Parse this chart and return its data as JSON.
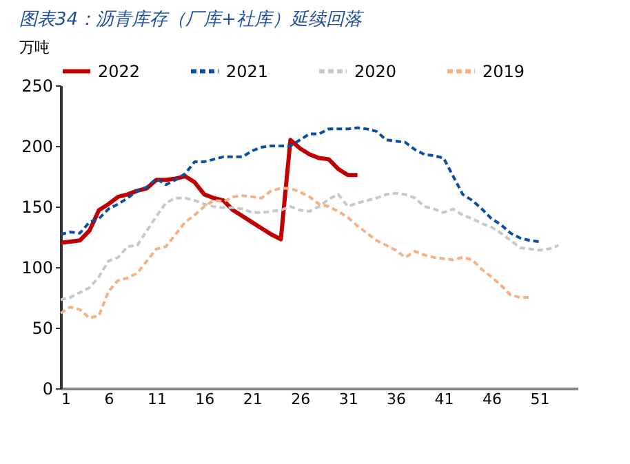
{
  "chart_data": {
    "type": "line",
    "title": "图表34：沥青库存（厂库+社库）延续回落",
    "ylabel": "万吨",
    "xlim": [
      1,
      55
    ],
    "xticks": [
      1,
      6,
      11,
      16,
      21,
      26,
      31,
      36,
      41,
      46,
      51
    ],
    "ylim": [
      0,
      250
    ],
    "yticks": [
      0,
      50,
      100,
      150,
      200,
      250
    ],
    "grid": false,
    "legend": "top",
    "series": [
      {
        "name": "2022",
        "color": "#c00000",
        "line_style": "solid",
        "x": [
          1,
          2,
          3,
          4,
          5,
          6,
          7,
          8,
          9,
          10,
          11,
          12,
          13,
          14,
          15,
          16,
          17,
          18,
          19,
          20,
          21,
          22,
          23,
          24,
          25,
          26,
          27,
          28,
          29,
          30,
          31,
          32
        ],
        "values": [
          120,
          121,
          122,
          130,
          147,
          152,
          158,
          160,
          163,
          165,
          172,
          172,
          173,
          175,
          170,
          160,
          157,
          155,
          147,
          142,
          137,
          132,
          127,
          123,
          205,
          198,
          193,
          190,
          189,
          181,
          176,
          176
        ]
      },
      {
        "name": "2021",
        "color": "#0b4ea2",
        "line_style": "dashed",
        "x": [
          1,
          2,
          3,
          4,
          5,
          6,
          7,
          8,
          9,
          10,
          11,
          12,
          13,
          14,
          15,
          16,
          17,
          18,
          19,
          20,
          21,
          22,
          23,
          24,
          25,
          26,
          27,
          28,
          29,
          30,
          31,
          32,
          33,
          34,
          35,
          36,
          37,
          38,
          39,
          40,
          41,
          42,
          43,
          44,
          45,
          46,
          47,
          48,
          49,
          50,
          51
        ],
        "values": [
          127,
          129,
          128,
          137,
          140,
          148,
          152,
          157,
          163,
          166,
          173,
          168,
          172,
          177,
          187,
          187,
          189,
          191,
          191,
          191,
          196,
          199,
          200,
          200,
          200,
          205,
          210,
          210,
          214,
          214,
          214,
          215,
          214,
          212,
          205,
          204,
          203,
          197,
          193,
          192,
          190,
          175,
          160,
          155,
          148,
          140,
          135,
          128,
          124,
          122,
          121
        ]
      },
      {
        "name": "2020",
        "color": "#c8c8c8",
        "line_style": "dashed",
        "x": [
          1,
          2,
          3,
          4,
          5,
          6,
          7,
          8,
          9,
          10,
          11,
          12,
          13,
          14,
          15,
          16,
          17,
          18,
          19,
          20,
          21,
          22,
          23,
          24,
          25,
          26,
          27,
          28,
          29,
          30,
          31,
          32,
          33,
          34,
          35,
          36,
          37,
          38,
          39,
          40,
          41,
          42,
          43,
          44,
          45,
          46,
          47,
          48,
          49,
          50,
          51,
          52,
          53
        ],
        "values": [
          73,
          75,
          79,
          83,
          92,
          105,
          108,
          117,
          118,
          130,
          142,
          153,
          157,
          157,
          155,
          152,
          150,
          149,
          149,
          148,
          145,
          145,
          146,
          147,
          150,
          147,
          146,
          150,
          156,
          160,
          150,
          153,
          155,
          157,
          160,
          161,
          160,
          157,
          150,
          148,
          145,
          148,
          143,
          140,
          136,
          133,
          128,
          122,
          116,
          115,
          114,
          115,
          118
        ]
      },
      {
        "name": "2019",
        "color": "#f4b183",
        "line_style": "dashed",
        "x": [
          1,
          2,
          3,
          4,
          5,
          6,
          7,
          8,
          9,
          10,
          11,
          12,
          13,
          14,
          15,
          16,
          17,
          18,
          19,
          20,
          21,
          22,
          23,
          24,
          25,
          26,
          27,
          28,
          29,
          30,
          31,
          32,
          33,
          34,
          35,
          36,
          37,
          38,
          39,
          40,
          41,
          42,
          43,
          44,
          45,
          46,
          47,
          48,
          49,
          50
        ],
        "values": [
          62,
          67,
          65,
          58,
          60,
          80,
          89,
          91,
          95,
          105,
          115,
          117,
          127,
          137,
          143,
          150,
          155,
          154,
          158,
          159,
          158,
          157,
          163,
          165,
          165,
          162,
          158,
          152,
          150,
          146,
          141,
          134,
          128,
          122,
          118,
          114,
          108,
          113,
          110,
          108,
          107,
          106,
          108,
          106,
          98,
          92,
          85,
          77,
          75,
          75
        ]
      }
    ]
  }
}
